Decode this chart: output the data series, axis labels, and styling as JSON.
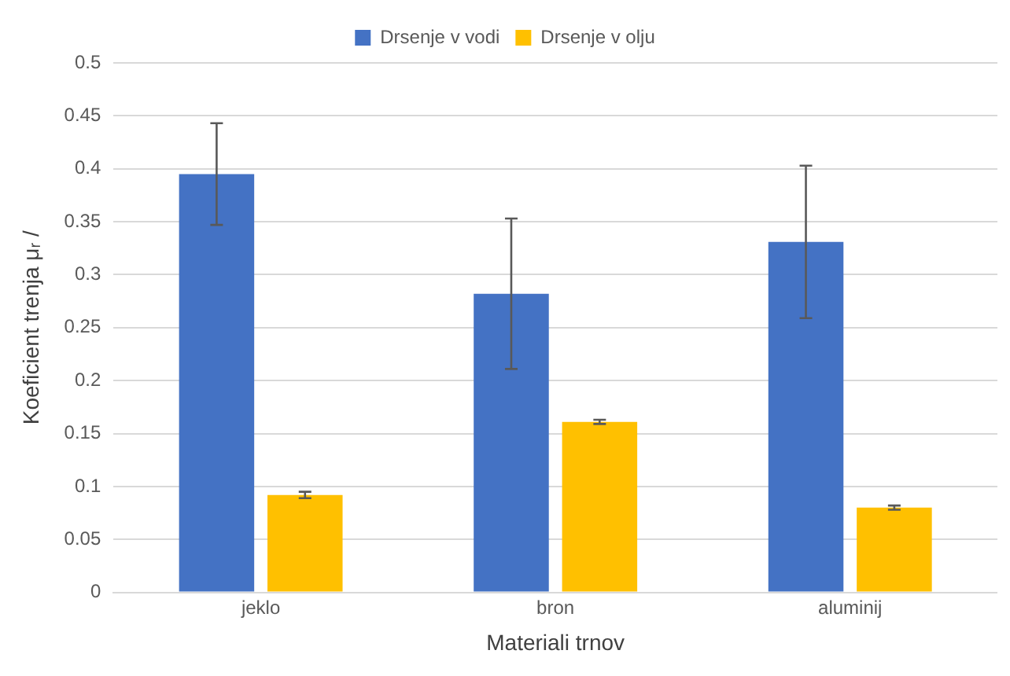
{
  "chart_data": {
    "type": "bar",
    "xlabel": "Materiali trnov",
    "ylabel": "Koeficient trenja μᵣ /",
    "categories": [
      "jeklo",
      "bron",
      "aluminij"
    ],
    "series": [
      {
        "name": "Drsenje v vodi",
        "color": "#4472c4",
        "values": [
          0.395,
          0.282,
          0.331
        ],
        "errors": [
          0.048,
          0.071,
          0.072
        ]
      },
      {
        "name": "Drsenje v olju",
        "color": "#ffc000",
        "values": [
          0.092,
          0.161,
          0.08
        ],
        "errors": [
          0.003,
          0.002,
          0.002
        ]
      }
    ],
    "ylim": [
      0,
      0.5
    ],
    "yticks": [
      0,
      0.05,
      0.1,
      0.15,
      0.2,
      0.25,
      0.3,
      0.35,
      0.4,
      0.45,
      0.5
    ],
    "grid": "y",
    "legend": "top"
  }
}
